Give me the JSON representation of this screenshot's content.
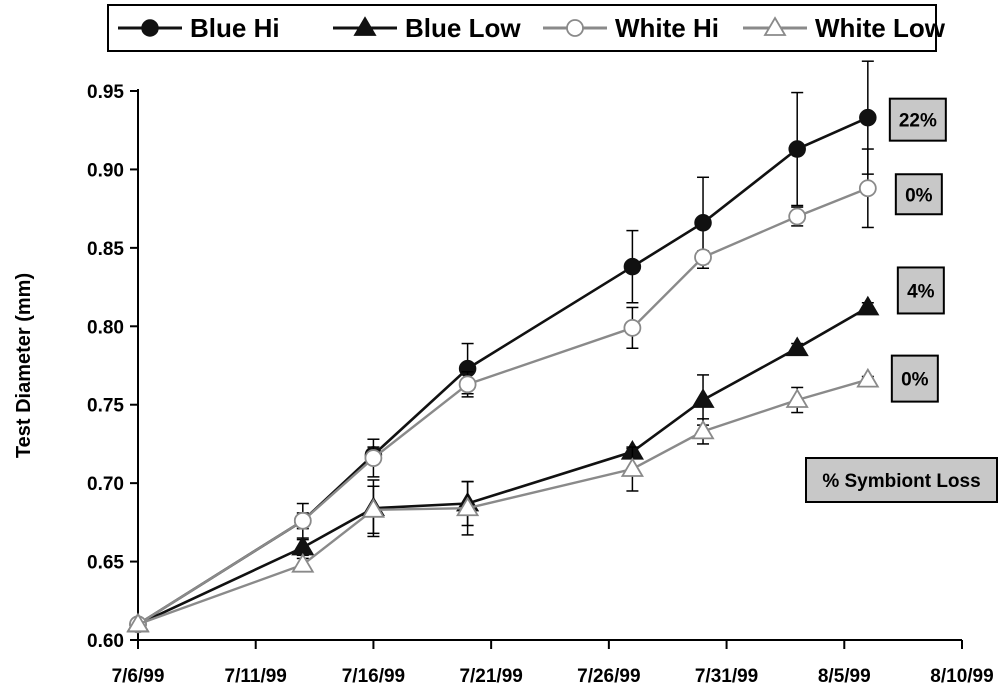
{
  "chart_data": {
    "type": "line",
    "title": "",
    "xlabel": "",
    "ylabel": "Test Diameter (mm)",
    "ylim": [
      0.6,
      0.95
    ],
    "yticks": [
      "0.60",
      "0.65",
      "0.70",
      "0.75",
      "0.80",
      "0.85",
      "0.90",
      "0.95"
    ],
    "xlim": [
      "7/6/99",
      "8/10/99"
    ],
    "xticks": [
      "7/6/99",
      "7/11/99",
      "7/16/99",
      "7/21/99",
      "7/26/99",
      "7/31/99",
      "8/5/99",
      "8/10/99"
    ],
    "grid": false,
    "legend_position": "top",
    "series": [
      {
        "name": "Blue Hi",
        "marker": "filled-circle",
        "color": "#111111",
        "points": [
          {
            "x": "7/6/99",
            "y": 0.61,
            "err": 0
          },
          {
            "x": "7/13/99",
            "y": 0.676,
            "err": 0.011
          },
          {
            "x": "7/16/99",
            "y": 0.718,
            "err": 0.005
          },
          {
            "x": "7/20/99",
            "y": 0.773,
            "err": 0.016
          },
          {
            "x": "7/27/99",
            "y": 0.838,
            "err": 0.023
          },
          {
            "x": "7/30/99",
            "y": 0.866,
            "err": 0.029
          },
          {
            "x": "8/3/99",
            "y": 0.913,
            "err": 0.036
          },
          {
            "x": "8/6/99",
            "y": 0.933,
            "err": 0.036
          }
        ]
      },
      {
        "name": "Blue Low",
        "marker": "filled-triangle",
        "color": "#111111",
        "points": [
          {
            "x": "7/6/99",
            "y": 0.61,
            "err": 0
          },
          {
            "x": "7/13/99",
            "y": 0.659,
            "err": 0.005
          },
          {
            "x": "7/16/99",
            "y": 0.684,
            "err": 0.018
          },
          {
            "x": "7/20/99",
            "y": 0.687,
            "err": 0.014
          },
          {
            "x": "7/27/99",
            "y": 0.72,
            "err": 0.002
          },
          {
            "x": "7/30/99",
            "y": 0.753,
            "err": 0.016
          },
          {
            "x": "8/3/99",
            "y": 0.786,
            "err": 0.003
          },
          {
            "x": "8/6/99",
            "y": 0.812,
            "err": 0.003
          }
        ]
      },
      {
        "name": "White Hi",
        "marker": "open-circle",
        "color": "#8a8a8a",
        "points": [
          {
            "x": "7/6/99",
            "y": 0.61,
            "err": 0
          },
          {
            "x": "7/13/99",
            "y": 0.676,
            "err": 0.005
          },
          {
            "x": "7/16/99",
            "y": 0.716,
            "err": 0.012
          },
          {
            "x": "7/20/99",
            "y": 0.763,
            "err": 0.008
          },
          {
            "x": "7/27/99",
            "y": 0.799,
            "err": 0.013
          },
          {
            "x": "7/30/99",
            "y": 0.844,
            "err": 0.004
          },
          {
            "x": "8/3/99",
            "y": 0.87,
            "err": 0.006
          },
          {
            "x": "8/6/99",
            "y": 0.888,
            "err": 0.025
          }
        ]
      },
      {
        "name": "White Low",
        "marker": "open-triangle",
        "color": "#8a8a8a",
        "points": [
          {
            "x": "7/6/99",
            "y": 0.61,
            "err": 0
          },
          {
            "x": "7/13/99",
            "y": 0.648,
            "err": 0.004
          },
          {
            "x": "7/16/99",
            "y": 0.683,
            "err": 0.015
          },
          {
            "x": "7/20/99",
            "y": 0.684,
            "err": 0.017
          },
          {
            "x": "7/27/99",
            "y": 0.709,
            "err": 0.014
          },
          {
            "x": "7/30/99",
            "y": 0.733,
            "err": 0.008
          },
          {
            "x": "8/3/99",
            "y": 0.753,
            "err": 0.008
          },
          {
            "x": "8/6/99",
            "y": 0.766,
            "err": 0.002
          }
        ]
      }
    ],
    "annotations": [
      {
        "text": "22%",
        "series": "Blue Hi"
      },
      {
        "text": "0%",
        "series": "White Hi"
      },
      {
        "text": "4%",
        "series": "Blue Low"
      },
      {
        "text": "0%",
        "series": "White Low"
      },
      {
        "text": "% Symbiont Loss",
        "series": ""
      }
    ],
    "annotation_fill": "#c8c8c8"
  }
}
